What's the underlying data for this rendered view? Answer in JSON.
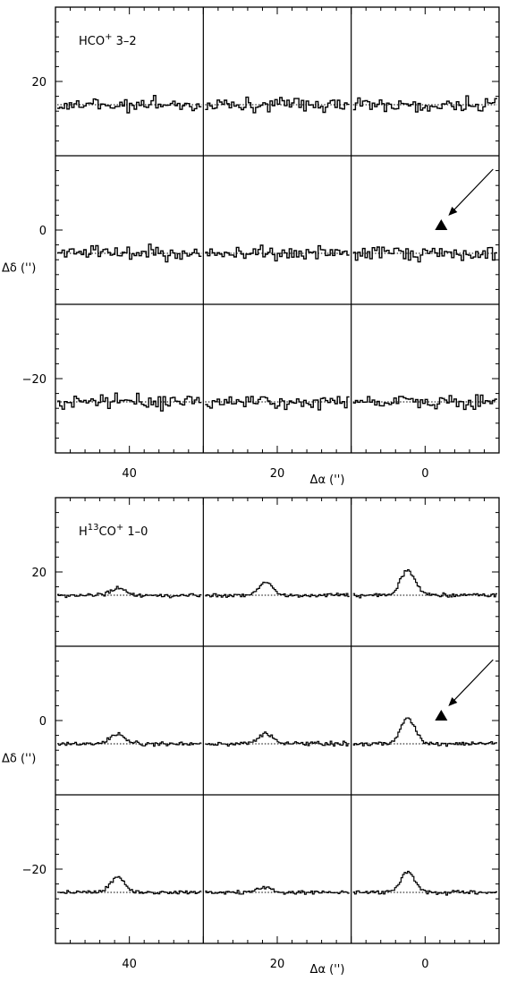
{
  "chart_data": [
    {
      "type": "line",
      "title": "HCO⁺ 3–2",
      "label_main": "HCO",
      "label_sup": "+",
      "label_line": " 3–2",
      "xlabel": "Δα ('')",
      "ylabel": "Δδ ('')",
      "xlim": [
        50,
        -10
      ],
      "ylim": [
        -30,
        30
      ],
      "x_ticks": [
        40,
        20,
        0
      ],
      "y_ticks": [
        20,
        0,
        -20
      ],
      "grid_x": [
        30,
        10
      ],
      "grid_y": [
        10,
        -10
      ],
      "marker": {
        "type": "filled-triangle",
        "x": 0,
        "y": 0
      },
      "spectra_rows": [
        {
          "name": "Δδ = 20",
          "baseline_offset": 20,
          "peak_heights": [
            0,
            0,
            0
          ],
          "noise": "high"
        },
        {
          "name": "Δδ = 0",
          "baseline_offset": 0,
          "peak_heights": [
            0,
            0,
            0
          ],
          "noise": "high"
        },
        {
          "name": "Δδ = -20",
          "baseline_offset": -20,
          "peak_heights": [
            0,
            0,
            0
          ],
          "noise": "high"
        }
      ]
    },
    {
      "type": "line",
      "title": "H¹³CO⁺ 1–0",
      "label_main": "H",
      "label_sup13": "13",
      "label_mid": "CO",
      "label_sup": "+",
      "label_line": " 1–0",
      "xlabel": "Δα ('')",
      "ylabel": "Δδ ('')",
      "xlim": [
        50,
        -10
      ],
      "ylim": [
        -30,
        30
      ],
      "x_ticks": [
        40,
        20,
        0
      ],
      "y_ticks": [
        20,
        0,
        -20
      ],
      "grid_x": [
        30,
        10
      ],
      "grid_y": [
        10,
        -10
      ],
      "marker": {
        "type": "filled-triangle",
        "x": 0,
        "y": 0
      },
      "spectra_rows": [
        {
          "name": "Δδ = 20",
          "baseline_offset": 20,
          "peak_heights": [
            0.3,
            0.5,
            1.0
          ],
          "noise": "low"
        },
        {
          "name": "Δδ = 0",
          "baseline_offset": 0,
          "peak_heights": [
            0.4,
            0.4,
            1.0
          ],
          "noise": "low"
        },
        {
          "name": "Δδ = -20",
          "baseline_offset": -20,
          "peak_heights": [
            0.6,
            0.2,
            0.8
          ],
          "noise": "low"
        }
      ]
    }
  ]
}
